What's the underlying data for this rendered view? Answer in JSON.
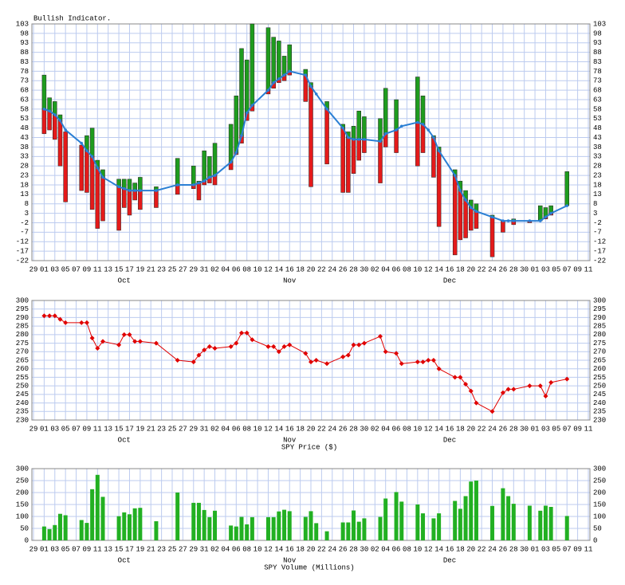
{
  "chart_data": [
    {
      "type": "range",
      "title": "Bullish Indicator.",
      "x": [
        2,
        3,
        4,
        5,
        6,
        9,
        10,
        11,
        12,
        13,
        16,
        17,
        18,
        19,
        20,
        23,
        27,
        30,
        31,
        32,
        33,
        34,
        37,
        38,
        39,
        40,
        41,
        44,
        45,
        46,
        47,
        48,
        51,
        52,
        53,
        55,
        58,
        59,
        60,
        61,
        62,
        65,
        66,
        68,
        69,
        72,
        73,
        74,
        75,
        76,
        79,
        80,
        81,
        82,
        83,
        86,
        88,
        89,
        90,
        93,
        95,
        96,
        97,
        100
      ],
      "high": [
        76,
        64,
        62,
        55,
        46,
        39,
        44,
        48,
        31,
        26,
        21,
        21,
        21,
        19,
        22,
        17,
        32,
        28,
        20,
        36,
        33,
        40,
        50,
        65,
        90,
        84,
        103,
        101,
        96,
        94,
        86,
        92,
        79,
        72,
        null,
        62,
        50,
        46,
        49,
        57,
        54,
        53,
        69,
        63,
        null,
        75,
        65,
        null,
        44,
        38,
        26,
        20,
        15,
        10,
        8,
        2,
        -1,
        null,
        0,
        -1,
        7,
        6,
        7,
        25
      ],
      "low": [
        45,
        47,
        42,
        28,
        9,
        15,
        14,
        5,
        -5,
        -1,
        -6,
        6,
        2,
        10,
        5,
        6,
        13,
        16,
        10,
        18,
        19,
        18,
        26,
        34,
        40,
        52,
        57,
        66,
        69,
        72,
        73,
        76,
        62,
        17,
        null,
        29,
        14,
        14,
        24,
        31,
        35,
        19,
        38,
        35,
        null,
        28,
        35,
        null,
        22,
        -4,
        -19,
        -11,
        -10,
        -6,
        -5,
        -20,
        -7,
        null,
        -3,
        -2,
        -1,
        0,
        2,
        7
      ],
      "ma": [
        58,
        57,
        55,
        52,
        47,
        40,
        36,
        33,
        27,
        22,
        17,
        16,
        15,
        15,
        15,
        15,
        18,
        18,
        19,
        20,
        22,
        23,
        30,
        35,
        44,
        56,
        60,
        68,
        72,
        74,
        76,
        78,
        76,
        70,
        66,
        58,
        48,
        43,
        42,
        42,
        42,
        41,
        45,
        47,
        49,
        51,
        50,
        47,
        43,
        36,
        23,
        15,
        10,
        6,
        4,
        1,
        -1,
        -1,
        -1,
        -1,
        -1,
        1,
        3,
        7
      ],
      "color_above": "#1e9c1e",
      "color_below": "#e41a1a",
      "line_color": "#2a7fd4",
      "xlim": [
        -0.3,
        104.3
      ],
      "xticks": [
        {
          "value": 0,
          "label": "29"
        },
        {
          "value": 2,
          "label": "01"
        },
        {
          "value": 4,
          "label": "03"
        },
        {
          "value": 6,
          "label": "05"
        },
        {
          "value": 8,
          "label": "07"
        },
        {
          "value": 10,
          "label": "09"
        },
        {
          "value": 12,
          "label": "11"
        },
        {
          "value": 14,
          "label": "13"
        },
        {
          "value": 16,
          "label": "15"
        },
        {
          "value": 18,
          "label": "17"
        },
        {
          "value": 20,
          "label": "19"
        },
        {
          "value": 22,
          "label": "21"
        },
        {
          "value": 24,
          "label": "23"
        },
        {
          "value": 26,
          "label": "25"
        },
        {
          "value": 28,
          "label": "27"
        },
        {
          "value": 30,
          "label": "29"
        },
        {
          "value": 32,
          "label": "31"
        },
        {
          "value": 34,
          "label": "02"
        },
        {
          "value": 36,
          "label": "04"
        },
        {
          "value": 38,
          "label": "06"
        },
        {
          "value": 40,
          "label": "08"
        },
        {
          "value": 42,
          "label": "10"
        },
        {
          "value": 44,
          "label": "12"
        },
        {
          "value": 46,
          "label": "14"
        },
        {
          "value": 48,
          "label": "16"
        },
        {
          "value": 50,
          "label": "18"
        },
        {
          "value": 52,
          "label": "20"
        },
        {
          "value": 54,
          "label": "22"
        },
        {
          "value": 56,
          "label": "24"
        },
        {
          "value": 58,
          "label": "26"
        },
        {
          "value": 60,
          "label": "28"
        },
        {
          "value": 62,
          "label": "30"
        },
        {
          "value": 64,
          "label": "02"
        },
        {
          "value": 66,
          "label": "04"
        },
        {
          "value": 68,
          "label": "06"
        },
        {
          "value": 70,
          "label": "08"
        },
        {
          "value": 72,
          "label": "10"
        },
        {
          "value": 74,
          "label": "12"
        },
        {
          "value": 76,
          "label": "14"
        },
        {
          "value": 78,
          "label": "16"
        },
        {
          "value": 80,
          "label": "18"
        },
        {
          "value": 82,
          "label": "20"
        },
        {
          "value": 84,
          "label": "22"
        },
        {
          "value": 86,
          "label": "24"
        },
        {
          "value": 88,
          "label": "26"
        },
        {
          "value": 90,
          "label": "28"
        },
        {
          "value": 92,
          "label": "30"
        },
        {
          "value": 94,
          "label": "01"
        },
        {
          "value": 96,
          "label": "03"
        },
        {
          "value": 98,
          "label": "05"
        },
        {
          "value": 100,
          "label": "07"
        },
        {
          "value": 102,
          "label": "09"
        },
        {
          "value": 104,
          "label": "11"
        }
      ],
      "month_ticks": [
        {
          "value": 17,
          "label": "Oct"
        },
        {
          "value": 48,
          "label": "Nov"
        },
        {
          "value": 78,
          "label": "Dec"
        }
      ],
      "ylim": [
        -22,
        103
      ],
      "yticks": [
        103,
        98,
        93,
        88,
        83,
        78,
        73,
        68,
        63,
        58,
        53,
        48,
        43,
        38,
        33,
        28,
        23,
        18,
        13,
        8,
        3,
        -2,
        -7,
        -12,
        -17,
        -22
      ],
      "grid": true
    },
    {
      "type": "line",
      "title": "SPY Price ($)",
      "x": [
        2,
        3,
        4,
        5,
        6,
        9,
        10,
        11,
        12,
        13,
        16,
        17,
        18,
        19,
        20,
        23,
        27,
        30,
        31,
        32,
        33,
        34,
        37,
        38,
        39,
        40,
        41,
        44,
        45,
        46,
        47,
        48,
        51,
        52,
        53,
        55,
        58,
        59,
        60,
        61,
        62,
        65,
        66,
        68,
        69,
        72,
        73,
        74,
        75,
        76,
        79,
        80,
        81,
        82,
        83,
        86,
        88,
        89,
        90,
        93,
        95,
        96,
        97,
        100
      ],
      "values": [
        291,
        291,
        291,
        289,
        287,
        287,
        287,
        278,
        272,
        276,
        274,
        280,
        280,
        276,
        276,
        275,
        265,
        264,
        268,
        271,
        273,
        272,
        273,
        275,
        281,
        281,
        277,
        273,
        273,
        270,
        273,
        274,
        269,
        264,
        265,
        263,
        267,
        268,
        274,
        274,
        275,
        279,
        270,
        269,
        263,
        264,
        264,
        265,
        265,
        260,
        255,
        255,
        251,
        247,
        240,
        235,
        246,
        248,
        248,
        250,
        250,
        244,
        252,
        254
      ],
      "color": "#e00000",
      "xlim": [
        -0.3,
        104.3
      ],
      "xticks": [
        {
          "value": 0,
          "label": "29"
        },
        {
          "value": 2,
          "label": "01"
        },
        {
          "value": 4,
          "label": "03"
        },
        {
          "value": 6,
          "label": "05"
        },
        {
          "value": 8,
          "label": "07"
        },
        {
          "value": 10,
          "label": "09"
        },
        {
          "value": 12,
          "label": "11"
        },
        {
          "value": 14,
          "label": "13"
        },
        {
          "value": 16,
          "label": "15"
        },
        {
          "value": 18,
          "label": "17"
        },
        {
          "value": 20,
          "label": "19"
        },
        {
          "value": 22,
          "label": "21"
        },
        {
          "value": 24,
          "label": "23"
        },
        {
          "value": 26,
          "label": "25"
        },
        {
          "value": 28,
          "label": "27"
        },
        {
          "value": 30,
          "label": "29"
        },
        {
          "value": 32,
          "label": "31"
        },
        {
          "value": 34,
          "label": "02"
        },
        {
          "value": 36,
          "label": "04"
        },
        {
          "value": 38,
          "label": "06"
        },
        {
          "value": 40,
          "label": "08"
        },
        {
          "value": 42,
          "label": "10"
        },
        {
          "value": 44,
          "label": "12"
        },
        {
          "value": 46,
          "label": "14"
        },
        {
          "value": 48,
          "label": "16"
        },
        {
          "value": 50,
          "label": "18"
        },
        {
          "value": 52,
          "label": "20"
        },
        {
          "value": 54,
          "label": "22"
        },
        {
          "value": 56,
          "label": "24"
        },
        {
          "value": 58,
          "label": "26"
        },
        {
          "value": 60,
          "label": "28"
        },
        {
          "value": 62,
          "label": "30"
        },
        {
          "value": 64,
          "label": "02"
        },
        {
          "value": 66,
          "label": "04"
        },
        {
          "value": 68,
          "label": "06"
        },
        {
          "value": 70,
          "label": "08"
        },
        {
          "value": 72,
          "label": "10"
        },
        {
          "value": 74,
          "label": "12"
        },
        {
          "value": 76,
          "label": "14"
        },
        {
          "value": 78,
          "label": "16"
        },
        {
          "value": 80,
          "label": "18"
        },
        {
          "value": 82,
          "label": "20"
        },
        {
          "value": 84,
          "label": "22"
        },
        {
          "value": 86,
          "label": "24"
        },
        {
          "value": 88,
          "label": "26"
        },
        {
          "value": 90,
          "label": "28"
        },
        {
          "value": 92,
          "label": "30"
        },
        {
          "value": 94,
          "label": "01"
        },
        {
          "value": 96,
          "label": "03"
        },
        {
          "value": 98,
          "label": "05"
        },
        {
          "value": 100,
          "label": "07"
        },
        {
          "value": 102,
          "label": "09"
        },
        {
          "value": 104,
          "label": "11"
        }
      ],
      "month_ticks": [
        {
          "value": 17,
          "label": "Oct"
        },
        {
          "value": 48,
          "label": "Nov"
        },
        {
          "value": 78,
          "label": "Dec"
        }
      ],
      "ylim": [
        230,
        300
      ],
      "yticks": [
        300,
        295,
        290,
        285,
        280,
        275,
        270,
        265,
        260,
        255,
        250,
        245,
        240,
        235,
        230
      ],
      "grid": true
    },
    {
      "type": "bar",
      "title": "SPY Volume (Millions)",
      "x": [
        2,
        3,
        4,
        5,
        6,
        9,
        10,
        11,
        12,
        13,
        16,
        17,
        18,
        19,
        20,
        23,
        27,
        30,
        31,
        32,
        33,
        34,
        37,
        38,
        39,
        40,
        41,
        44,
        45,
        46,
        47,
        48,
        51,
        52,
        53,
        55,
        58,
        59,
        60,
        61,
        62,
        65,
        66,
        68,
        69,
        72,
        73,
        74,
        75,
        76,
        79,
        80,
        81,
        82,
        83,
        86,
        88,
        89,
        90,
        93,
        95,
        96,
        97,
        100
      ],
      "values": [
        58,
        47,
        64,
        111,
        105,
        85,
        73,
        214,
        274,
        182,
        101,
        117,
        109,
        134,
        136,
        80,
        200,
        157,
        157,
        127,
        97,
        124,
        62,
        58,
        98,
        67,
        97,
        97,
        97,
        121,
        128,
        122,
        98,
        122,
        72,
        38,
        75,
        75,
        125,
        78,
        92,
        98,
        175,
        202,
        162,
        150,
        113,
        null,
        92,
        113,
        165,
        132,
        185,
        246,
        250,
        144,
        218,
        185,
        153,
        145,
        124,
        145,
        140,
        102
      ],
      "color": "#22b022",
      "xlim": [
        -0.3,
        104.3
      ],
      "xticks": [
        {
          "value": 0,
          "label": "29"
        },
        {
          "value": 2,
          "label": "01"
        },
        {
          "value": 4,
          "label": "03"
        },
        {
          "value": 6,
          "label": "05"
        },
        {
          "value": 8,
          "label": "07"
        },
        {
          "value": 10,
          "label": "09"
        },
        {
          "value": 12,
          "label": "11"
        },
        {
          "value": 14,
          "label": "13"
        },
        {
          "value": 16,
          "label": "15"
        },
        {
          "value": 18,
          "label": "17"
        },
        {
          "value": 20,
          "label": "19"
        },
        {
          "value": 22,
          "label": "21"
        },
        {
          "value": 24,
          "label": "23"
        },
        {
          "value": 26,
          "label": "25"
        },
        {
          "value": 28,
          "label": "27"
        },
        {
          "value": 30,
          "label": "29"
        },
        {
          "value": 32,
          "label": "31"
        },
        {
          "value": 34,
          "label": "02"
        },
        {
          "value": 36,
          "label": "04"
        },
        {
          "value": 38,
          "label": "06"
        },
        {
          "value": 40,
          "label": "08"
        },
        {
          "value": 42,
          "label": "10"
        },
        {
          "value": 44,
          "label": "12"
        },
        {
          "value": 46,
          "label": "14"
        },
        {
          "value": 48,
          "label": "16"
        },
        {
          "value": 50,
          "label": "18"
        },
        {
          "value": 52,
          "label": "20"
        },
        {
          "value": 54,
          "label": "22"
        },
        {
          "value": 56,
          "label": "24"
        },
        {
          "value": 58,
          "label": "26"
        },
        {
          "value": 60,
          "label": "28"
        },
        {
          "value": 62,
          "label": "30"
        },
        {
          "value": 64,
          "label": "02"
        },
        {
          "value": 66,
          "label": "04"
        },
        {
          "value": 68,
          "label": "06"
        },
        {
          "value": 70,
          "label": "08"
        },
        {
          "value": 72,
          "label": "10"
        },
        {
          "value": 74,
          "label": "12"
        },
        {
          "value": 76,
          "label": "14"
        },
        {
          "value": 78,
          "label": "16"
        },
        {
          "value": 80,
          "label": "18"
        },
        {
          "value": 82,
          "label": "20"
        },
        {
          "value": 84,
          "label": "22"
        },
        {
          "value": 86,
          "label": "24"
        },
        {
          "value": 88,
          "label": "26"
        },
        {
          "value": 90,
          "label": "28"
        },
        {
          "value": 92,
          "label": "30"
        },
        {
          "value": 94,
          "label": "01"
        },
        {
          "value": 96,
          "label": "03"
        },
        {
          "value": 98,
          "label": "05"
        },
        {
          "value": 100,
          "label": "07"
        },
        {
          "value": 102,
          "label": "09"
        },
        {
          "value": 104,
          "label": "11"
        }
      ],
      "month_ticks": [
        {
          "value": 17,
          "label": "Oct"
        },
        {
          "value": 48,
          "label": "Nov"
        },
        {
          "value": 78,
          "label": "Dec"
        }
      ],
      "ylim": [
        0,
        300
      ],
      "yticks": [
        300,
        250,
        200,
        150,
        100,
        50,
        0
      ],
      "grid": true
    }
  ]
}
